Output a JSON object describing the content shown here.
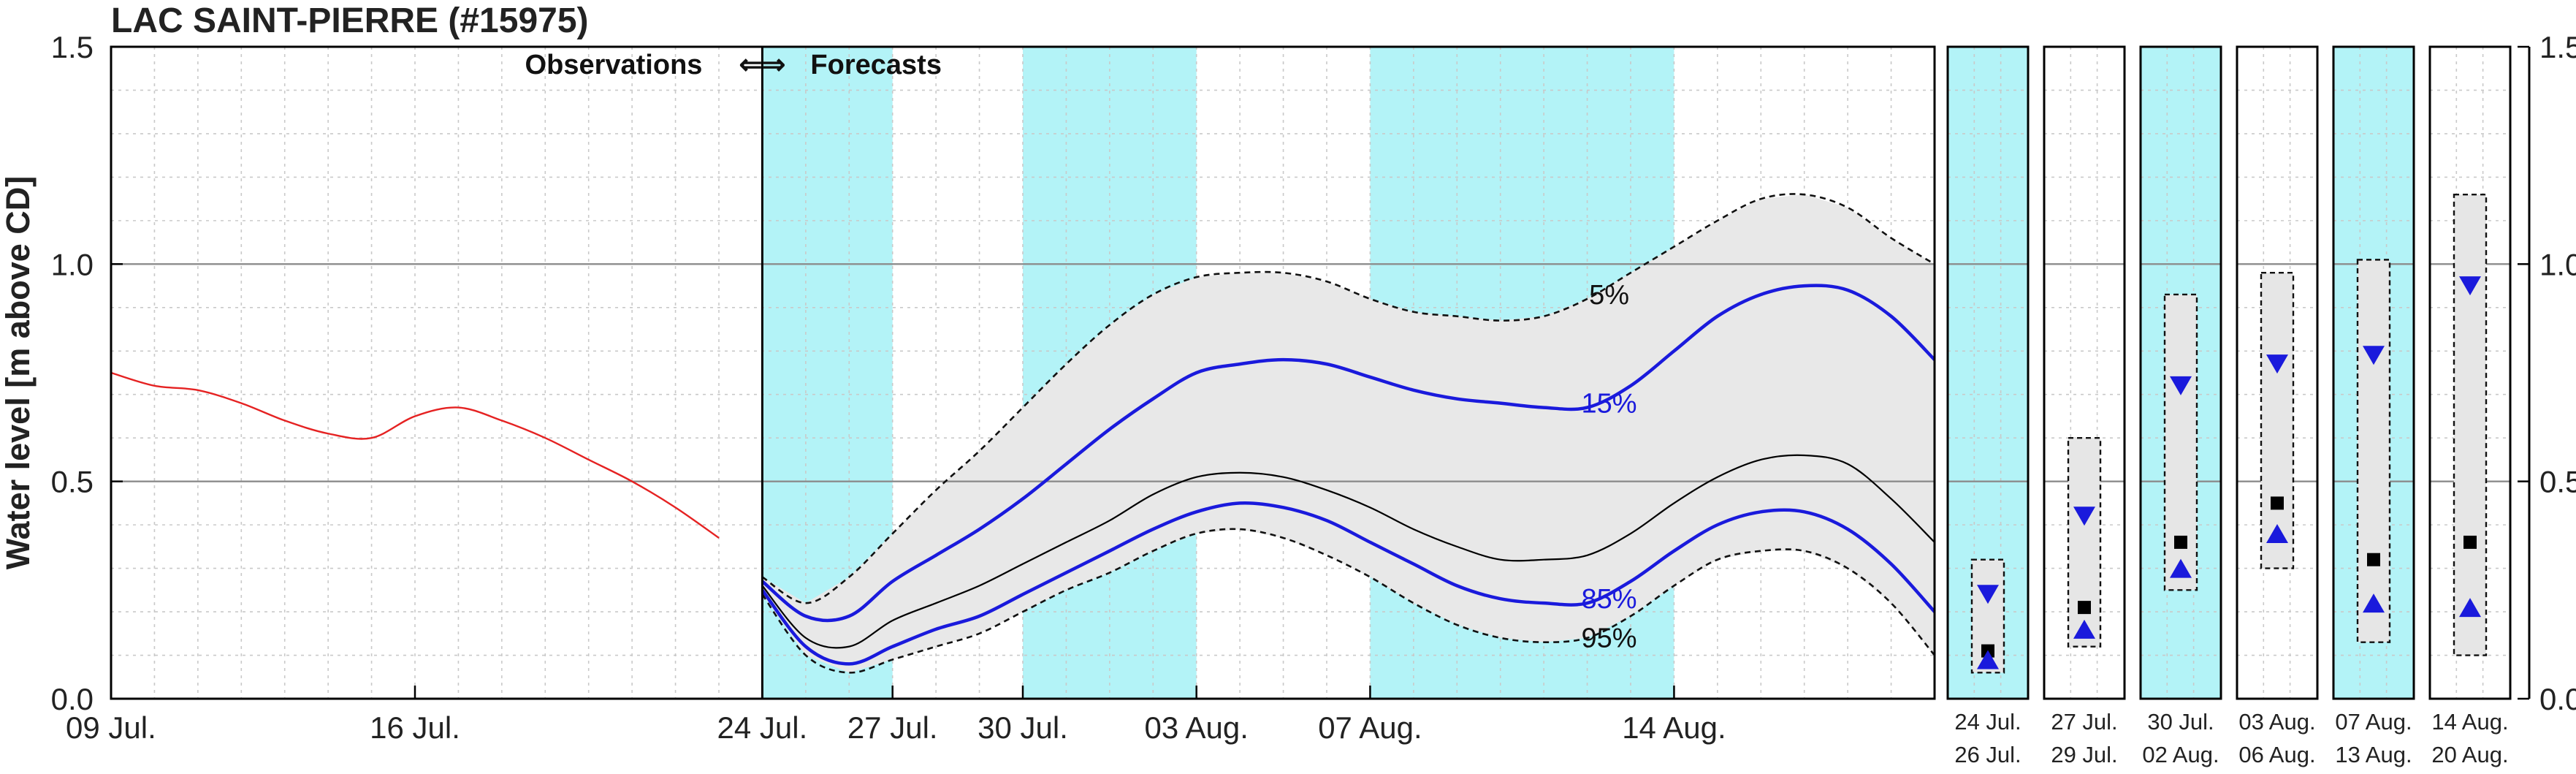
{
  "chart_data": {
    "type": "line",
    "title": "LAC SAINT-PIERRE (#15975)",
    "ylabel": "Water level [m above CD]",
    "ylim": [
      0.0,
      1.5
    ],
    "yticks": [
      "0.0",
      "0.5",
      "1.0",
      "1.5"
    ],
    "xlim": [
      "2025-07-09",
      "2025-08-20"
    ],
    "xticks": [
      {
        "date": "2025-07-09",
        "label": "09 Jul."
      },
      {
        "date": "2025-07-16",
        "label": "16 Jul."
      },
      {
        "date": "2025-07-24",
        "label": "24 Jul."
      },
      {
        "date": "2025-07-27",
        "label": "27 Jul."
      },
      {
        "date": "2025-07-30",
        "label": "30 Jul."
      },
      {
        "date": "2025-08-03",
        "label": "03 Aug."
      },
      {
        "date": "2025-08-07",
        "label": "07 Aug."
      },
      {
        "date": "2025-08-14",
        "label": "14 Aug."
      }
    ],
    "divider": {
      "date": "2025-07-24",
      "left_label": "Observations",
      "arrows": "⇐⇒",
      "right_label": "Forecasts"
    },
    "week_bands": [
      {
        "start": "2025-07-24",
        "end": "2025-07-27"
      },
      {
        "start": "2025-07-30",
        "end": "2025-08-03"
      },
      {
        "start": "2025-08-07",
        "end": "2025-08-14"
      }
    ],
    "colors": {
      "observed": "#e52222",
      "forecast_band": "#e8e8e8",
      "quantile_15_85": "#1a1adc",
      "median": "#000000",
      "week_band": "#b3f3f7"
    },
    "observed": {
      "x": [
        "2025-07-09",
        "2025-07-10",
        "2025-07-11",
        "2025-07-12",
        "2025-07-13",
        "2025-07-14",
        "2025-07-15",
        "2025-07-16",
        "2025-07-17",
        "2025-07-18",
        "2025-07-19",
        "2025-07-20",
        "2025-07-21",
        "2025-07-22",
        "2025-07-23"
      ],
      "y": [
        0.75,
        0.72,
        0.71,
        0.68,
        0.64,
        0.61,
        0.6,
        0.65,
        0.67,
        0.64,
        0.6,
        0.55,
        0.5,
        0.44,
        0.37
      ]
    },
    "forecast": {
      "x": [
        "2025-07-24",
        "2025-07-25",
        "2025-07-26",
        "2025-07-27",
        "2025-07-28",
        "2025-07-29",
        "2025-07-30",
        "2025-07-31",
        "2025-08-01",
        "2025-08-02",
        "2025-08-03",
        "2025-08-04",
        "2025-08-05",
        "2025-08-06",
        "2025-08-07",
        "2025-08-08",
        "2025-08-09",
        "2025-08-10",
        "2025-08-11",
        "2025-08-12",
        "2025-08-13",
        "2025-08-14",
        "2025-08-15",
        "2025-08-16",
        "2025-08-17",
        "2025-08-18",
        "2025-08-19",
        "2025-08-20"
      ],
      "series": [
        {
          "name": "5%",
          "y": [
            0.28,
            0.22,
            0.28,
            0.38,
            0.48,
            0.57,
            0.67,
            0.77,
            0.86,
            0.93,
            0.97,
            0.98,
            0.98,
            0.96,
            0.92,
            0.89,
            0.88,
            0.87,
            0.88,
            0.92,
            0.98,
            1.04,
            1.1,
            1.15,
            1.16,
            1.13,
            1.06,
            1.0
          ]
        },
        {
          "name": "15%",
          "y": [
            0.27,
            0.19,
            0.19,
            0.27,
            0.33,
            0.39,
            0.46,
            0.54,
            0.62,
            0.69,
            0.75,
            0.77,
            0.78,
            0.77,
            0.74,
            0.71,
            0.69,
            0.68,
            0.67,
            0.67,
            0.72,
            0.8,
            0.88,
            0.93,
            0.95,
            0.94,
            0.88,
            0.78
          ]
        },
        {
          "name": "50%",
          "y": [
            0.26,
            0.14,
            0.12,
            0.18,
            0.22,
            0.26,
            0.31,
            0.36,
            0.41,
            0.47,
            0.51,
            0.52,
            0.51,
            0.48,
            0.44,
            0.39,
            0.35,
            0.32,
            0.32,
            0.33,
            0.38,
            0.45,
            0.51,
            0.55,
            0.56,
            0.54,
            0.46,
            0.36
          ]
        },
        {
          "name": "85%",
          "y": [
            0.25,
            0.12,
            0.08,
            0.12,
            0.16,
            0.19,
            0.24,
            0.29,
            0.34,
            0.39,
            0.43,
            0.45,
            0.44,
            0.41,
            0.36,
            0.31,
            0.26,
            0.23,
            0.22,
            0.22,
            0.27,
            0.34,
            0.4,
            0.43,
            0.43,
            0.39,
            0.31,
            0.2
          ]
        },
        {
          "name": "95%",
          "y": [
            0.24,
            0.1,
            0.06,
            0.09,
            0.12,
            0.15,
            0.2,
            0.25,
            0.29,
            0.34,
            0.38,
            0.39,
            0.37,
            0.33,
            0.28,
            0.22,
            0.17,
            0.14,
            0.13,
            0.14,
            0.19,
            0.26,
            0.32,
            0.34,
            0.34,
            0.3,
            0.22,
            0.1
          ]
        }
      ],
      "labels": [
        {
          "text": "5%",
          "date": "2025-08-12",
          "y": 0.93
        },
        {
          "text": "15%",
          "date": "2025-08-12",
          "y": 0.68
        },
        {
          "text": "85%",
          "date": "2025-08-12",
          "y": 0.23
        },
        {
          "text": "95%",
          "date": "2025-08-12",
          "y": 0.14
        }
      ]
    },
    "weekly": [
      {
        "week1": "24  Jul.",
        "week2": "26  Jul.",
        "shaded": true,
        "min": 0.06,
        "max": 0.32,
        "median": 0.11,
        "up": 0.09,
        "down": 0.24
      },
      {
        "week1": "27  Jul.",
        "week2": "29  Jul.",
        "shaded": false,
        "min": 0.12,
        "max": 0.6,
        "median": 0.21,
        "up": 0.16,
        "down": 0.42
      },
      {
        "week1": "30  Jul.",
        "week2": "02  Aug.",
        "shaded": true,
        "min": 0.25,
        "max": 0.93,
        "median": 0.36,
        "up": 0.3,
        "down": 0.72
      },
      {
        "week1": "03  Aug.",
        "week2": "06  Aug.",
        "shaded": false,
        "min": 0.3,
        "max": 0.98,
        "median": 0.45,
        "up": 0.38,
        "down": 0.77
      },
      {
        "week1": "07  Aug.",
        "week2": "13  Aug.",
        "shaded": true,
        "min": 0.13,
        "max": 1.01,
        "median": 0.32,
        "up": 0.22,
        "down": 0.79
      },
      {
        "week1": "14  Aug.",
        "week2": "20  Aug.",
        "shaded": false,
        "min": 0.1,
        "max": 1.16,
        "median": 0.36,
        "up": 0.21,
        "down": 0.95
      }
    ]
  }
}
